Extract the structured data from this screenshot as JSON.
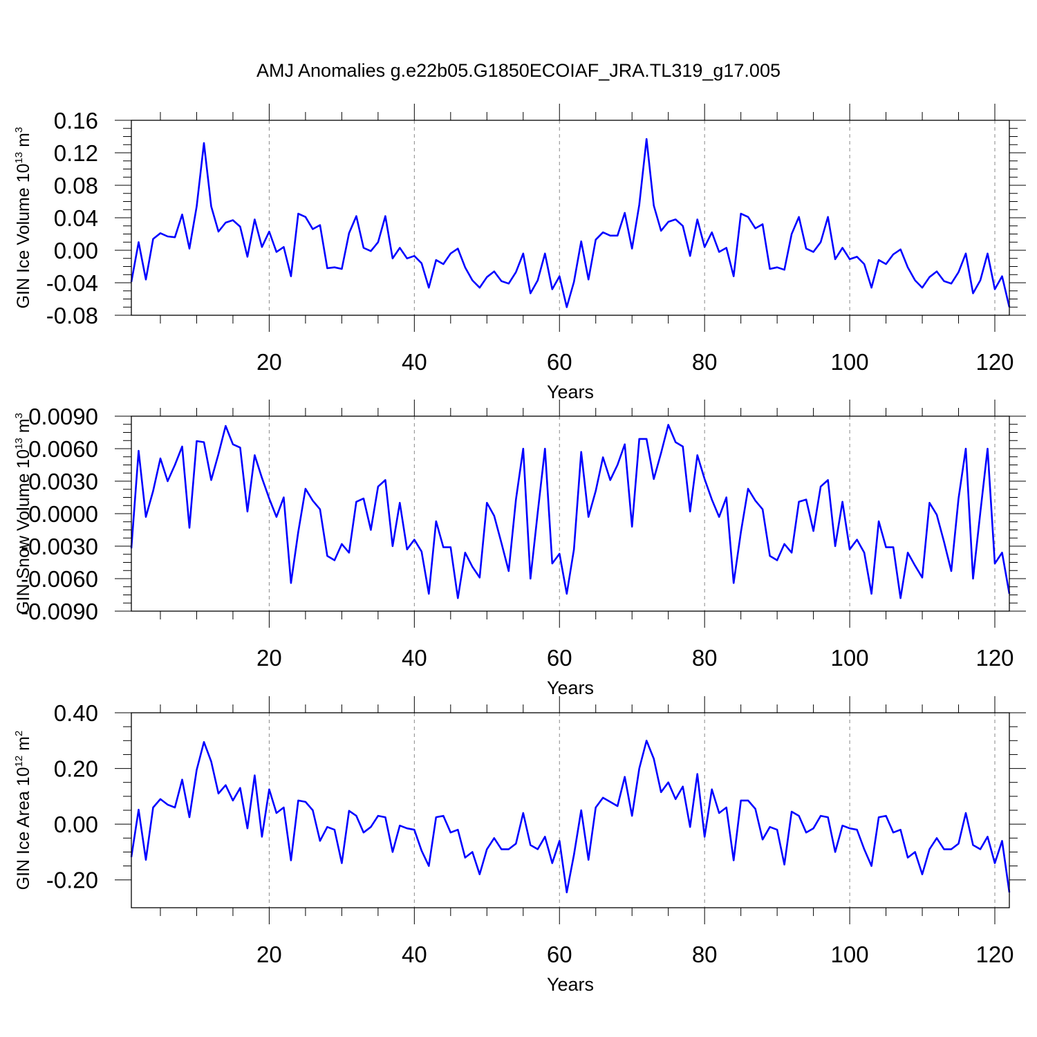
{
  "title": "AMJ Anomalies g.e22b05.G1850ECOIAF_JRA.TL319_g17.005",
  "line_color": "#0000ff",
  "chart_data": [
    {
      "type": "line",
      "ylabel_main": "GIN Ice Volume 10",
      "ylabel_exp": "13",
      "ylabel_unit": " m",
      "ylabel_unit_exp": "3",
      "xlabel": "Years",
      "xlim": [
        1,
        122
      ],
      "ylim": [
        -0.08,
        0.16
      ],
      "yticks": [
        "0.16",
        "0.12",
        "0.08",
        "0.04",
        "0.00",
        "-0.04",
        "-0.08"
      ],
      "xticks": [
        "20",
        "40",
        "60",
        "80",
        "100",
        "120"
      ],
      "grid_x": [
        20,
        40,
        60,
        80,
        100,
        120
      ],
      "series": [
        {
          "values": [
            -0.039,
            0.01,
            -0.036,
            0.014,
            0.021,
            0.017,
            0.016,
            0.044,
            0.002,
            0.054,
            0.132,
            0.054,
            0.023,
            0.034,
            0.037,
            0.029,
            -0.008,
            0.038,
            0.004,
            0.023,
            -0.002,
            0.004,
            -0.032,
            0.045,
            0.041,
            0.026,
            0.031,
            -0.022,
            -0.021,
            -0.023,
            0.021,
            0.042,
            0.003,
            -0.001,
            0.01,
            0.042,
            -0.01,
            0.003,
            -0.01,
            -0.007,
            -0.016,
            -0.046,
            -0.012,
            -0.017,
            -0.004,
            0.002,
            -0.021,
            -0.037,
            -0.046,
            -0.033,
            -0.026,
            -0.038,
            -0.041,
            -0.027,
            -0.004,
            -0.053,
            -0.037,
            -0.004,
            -0.048,
            -0.032,
            -0.07,
            -0.039,
            0.011,
            -0.036,
            0.013,
            0.022,
            0.018,
            0.018,
            0.046,
            0.002,
            0.056,
            0.137,
            0.055,
            0.024,
            0.035,
            0.038,
            0.03,
            -0.007,
            0.038,
            0.004,
            0.022,
            -0.002,
            0.003,
            -0.032,
            0.045,
            0.041,
            0.027,
            0.032,
            -0.023,
            -0.021,
            -0.024,
            0.02,
            0.041,
            0.002,
            -0.002,
            0.01,
            0.041,
            -0.011,
            0.003,
            -0.011,
            -0.008,
            -0.017,
            -0.046,
            -0.012,
            -0.017,
            -0.005,
            0.001,
            -0.021,
            -0.037,
            -0.046,
            -0.033,
            -0.026,
            -0.038,
            -0.041,
            -0.027,
            -0.004,
            -0.053,
            -0.037,
            -0.004,
            -0.048,
            -0.032,
            -0.07
          ]
        }
      ]
    },
    {
      "type": "line",
      "ylabel_main": "GIN Snow Volume 10",
      "ylabel_exp": "13",
      "ylabel_unit": " m",
      "ylabel_unit_exp": "3",
      "xlabel": "Years",
      "xlim": [
        1,
        122
      ],
      "ylim": [
        -0.009,
        0.009
      ],
      "yticks": [
        "0.0090",
        "0.0060",
        "0.0030",
        "0.0000",
        "-0.0030",
        "-0.0060",
        "-0.0090"
      ],
      "xticks": [
        "20",
        "40",
        "60",
        "80",
        "100",
        "120"
      ],
      "grid_x": [
        20,
        40,
        60,
        80,
        100,
        120
      ],
      "series": [
        {
          "values": [
            -0.0032,
            0.0058,
            -0.0003,
            0.0021,
            0.0051,
            0.003,
            0.0045,
            0.0062,
            -0.0013,
            0.0067,
            0.0066,
            0.0031,
            0.0055,
            0.0081,
            0.0064,
            0.0061,
            0.0002,
            0.0054,
            0.0033,
            0.0014,
            -0.0003,
            0.0015,
            -0.0064,
            -0.0017,
            0.0023,
            0.0012,
            0.0004,
            -0.0039,
            -0.0043,
            -0.0028,
            -0.0036,
            0.0011,
            0.0014,
            -0.0015,
            0.0025,
            0.0031,
            -0.003,
            0.001,
            -0.0033,
            -0.0024,
            -0.0035,
            -0.0074,
            -0.0007,
            -0.0031,
            -0.0031,
            -0.0078,
            -0.0036,
            -0.0049,
            -0.0059,
            0.001,
            -0.0002,
            -0.0027,
            -0.0053,
            0.0013,
            0.006,
            -0.006,
            0.0001,
            0.006,
            -0.0046,
            -0.0037,
            -0.0074,
            -0.0033,
            0.0057,
            -0.0003,
            0.0021,
            0.0052,
            0.0031,
            0.0045,
            0.0064,
            -0.0012,
            0.0069,
            0.0069,
            0.0032,
            0.0056,
            0.0082,
            0.0066,
            0.0062,
            0.0002,
            0.0054,
            0.0032,
            0.0013,
            -0.0003,
            0.0015,
            -0.0064,
            -0.0017,
            0.0023,
            0.0012,
            0.0004,
            -0.0039,
            -0.0043,
            -0.0028,
            -0.0036,
            0.0011,
            0.0013,
            -0.0016,
            0.0025,
            0.0031,
            -0.003,
            0.0011,
            -0.0033,
            -0.0024,
            -0.0036,
            -0.0074,
            -0.0007,
            -0.0031,
            -0.0031,
            -0.0078,
            -0.0036,
            -0.0048,
            -0.0059,
            0.001,
            -0.0001,
            -0.0026,
            -0.0053,
            0.0014,
            0.006,
            -0.006,
            0.0001,
            0.006,
            -0.0046,
            -0.0036,
            -0.0074
          ]
        }
      ]
    },
    {
      "type": "line",
      "ylabel_main": "GIN Ice Area 10",
      "ylabel_exp": "12",
      "ylabel_unit": " m",
      "ylabel_unit_exp": "2",
      "xlabel": "Years",
      "xlim": [
        1,
        122
      ],
      "ylim": [
        -0.3,
        0.4
      ],
      "yticks": [
        "0.40",
        "0.20",
        "0.00",
        "-0.20"
      ],
      "xticks": [
        "20",
        "40",
        "60",
        "80",
        "100",
        "120"
      ],
      "grid_x": [
        20,
        40,
        60,
        80,
        100,
        120
      ],
      "series": [
        {
          "values": [
            -0.118,
            0.052,
            -0.128,
            0.06,
            0.09,
            0.07,
            0.06,
            0.16,
            0.025,
            0.195,
            0.295,
            0.225,
            0.11,
            0.14,
            0.085,
            0.13,
            -0.015,
            0.175,
            -0.045,
            0.125,
            0.04,
            0.06,
            -0.13,
            0.085,
            0.08,
            0.05,
            -0.06,
            -0.01,
            -0.02,
            -0.14,
            0.048,
            0.03,
            -0.03,
            -0.01,
            0.03,
            0.025,
            -0.1,
            -0.005,
            -0.015,
            -0.02,
            -0.095,
            -0.15,
            0.025,
            0.03,
            -0.03,
            -0.02,
            -0.12,
            -0.1,
            -0.18,
            -0.09,
            -0.05,
            -0.09,
            -0.09,
            -0.07,
            0.04,
            -0.075,
            -0.09,
            -0.045,
            -0.14,
            -0.06,
            -0.245,
            -0.11,
            0.05,
            -0.128,
            0.06,
            0.095,
            0.08,
            0.065,
            0.17,
            0.03,
            0.2,
            0.3,
            0.235,
            0.115,
            0.15,
            0.09,
            0.135,
            -0.01,
            0.18,
            -0.045,
            0.125,
            0.04,
            0.06,
            -0.13,
            0.085,
            0.085,
            0.055,
            -0.055,
            -0.01,
            -0.02,
            -0.145,
            0.045,
            0.03,
            -0.03,
            -0.015,
            0.03,
            0.025,
            -0.1,
            -0.005,
            -0.015,
            -0.02,
            -0.09,
            -0.15,
            0.025,
            0.03,
            -0.03,
            -0.02,
            -0.12,
            -0.1,
            -0.18,
            -0.09,
            -0.05,
            -0.09,
            -0.09,
            -0.07,
            0.04,
            -0.075,
            -0.09,
            -0.045,
            -0.14,
            -0.06,
            -0.245
          ]
        }
      ]
    }
  ]
}
